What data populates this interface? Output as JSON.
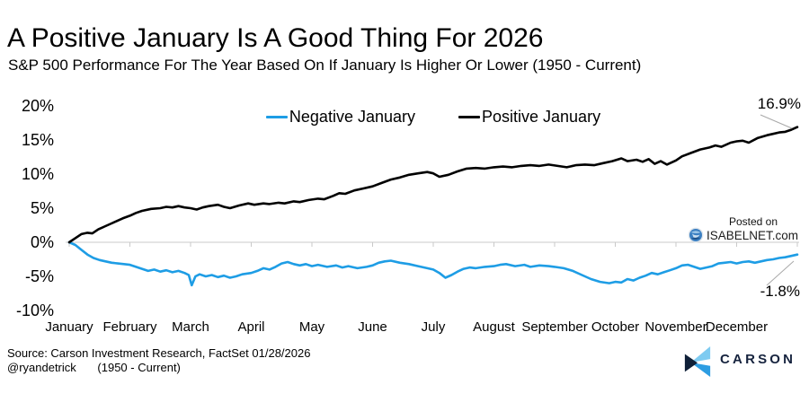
{
  "title": "A Positive January Is A Good Thing For 2026",
  "subtitle": "S&P 500 Performance For The Year Based On If January Is Higher Or Lower (1950 - Current)",
  "legend": {
    "items": [
      {
        "label": "Negative January",
        "color": "#1e9de5"
      },
      {
        "label": "Positive January",
        "color": "#000000"
      }
    ]
  },
  "chart_data": {
    "type": "line",
    "title": "A Positive January Is A Good Thing For 2026",
    "subtitle": "S&P 500 Performance For The Year Based On If January Is Higher Or Lower (1950 - Current)",
    "x_unit": "month (0 = start of January, 12 = end of December)",
    "categories": [
      "January",
      "February",
      "March",
      "April",
      "May",
      "June",
      "July",
      "August",
      "September",
      "October",
      "November",
      "December"
    ],
    "y_axis": {
      "unit": "%",
      "range": [
        -10,
        20
      ],
      "ticks": [
        {
          "label": "20%",
          "value": 20
        },
        {
          "label": "15%",
          "value": 15
        },
        {
          "label": "10%",
          "value": 10
        },
        {
          "label": "5%",
          "value": 5
        },
        {
          "label": "0%",
          "value": 0
        },
        {
          "label": "-5%",
          "value": -5
        },
        {
          "label": "-10%",
          "value": -10
        }
      ]
    },
    "grid": "zero-line-only",
    "legend_position": "top-center",
    "series": [
      {
        "name": "Negative January",
        "color": "#1e9de5",
        "end_label": "-1.8%",
        "end_value": -1.8,
        "points": [
          [
            0,
            0
          ],
          [
            0.1,
            -0.4
          ],
          [
            0.2,
            -1.1
          ],
          [
            0.3,
            -1.8
          ],
          [
            0.4,
            -2.3
          ],
          [
            0.5,
            -2.6
          ],
          [
            0.6,
            -2.8
          ],
          [
            0.7,
            -3.0
          ],
          [
            0.8,
            -3.1
          ],
          [
            0.9,
            -3.2
          ],
          [
            1.0,
            -3.3
          ],
          [
            1.1,
            -3.6
          ],
          [
            1.2,
            -3.9
          ],
          [
            1.3,
            -4.2
          ],
          [
            1.4,
            -4.0
          ],
          [
            1.5,
            -4.3
          ],
          [
            1.6,
            -4.1
          ],
          [
            1.7,
            -4.4
          ],
          [
            1.8,
            -4.2
          ],
          [
            1.9,
            -4.5
          ],
          [
            1.97,
            -4.8
          ],
          [
            2.02,
            -6.3
          ],
          [
            2.08,
            -5.0
          ],
          [
            2.15,
            -4.7
          ],
          [
            2.25,
            -5.0
          ],
          [
            2.35,
            -4.8
          ],
          [
            2.45,
            -5.1
          ],
          [
            2.55,
            -4.9
          ],
          [
            2.65,
            -5.2
          ],
          [
            2.75,
            -5.0
          ],
          [
            2.85,
            -4.7
          ],
          [
            3.0,
            -4.5
          ],
          [
            3.1,
            -4.2
          ],
          [
            3.2,
            -3.8
          ],
          [
            3.3,
            -4.0
          ],
          [
            3.4,
            -3.6
          ],
          [
            3.5,
            -3.1
          ],
          [
            3.6,
            -2.9
          ],
          [
            3.7,
            -3.2
          ],
          [
            3.8,
            -3.4
          ],
          [
            3.9,
            -3.2
          ],
          [
            4.0,
            -3.5
          ],
          [
            4.1,
            -3.3
          ],
          [
            4.25,
            -3.6
          ],
          [
            4.4,
            -3.4
          ],
          [
            4.5,
            -3.7
          ],
          [
            4.6,
            -3.5
          ],
          [
            4.75,
            -3.8
          ],
          [
            4.9,
            -3.6
          ],
          [
            5.0,
            -3.4
          ],
          [
            5.1,
            -3.0
          ],
          [
            5.2,
            -2.8
          ],
          [
            5.3,
            -2.7
          ],
          [
            5.45,
            -3.0
          ],
          [
            5.6,
            -3.2
          ],
          [
            5.75,
            -3.5
          ],
          [
            5.9,
            -3.8
          ],
          [
            6.0,
            -4.0
          ],
          [
            6.1,
            -4.5
          ],
          [
            6.2,
            -5.2
          ],
          [
            6.3,
            -4.8
          ],
          [
            6.4,
            -4.3
          ],
          [
            6.5,
            -3.9
          ],
          [
            6.6,
            -3.7
          ],
          [
            6.7,
            -3.8
          ],
          [
            6.85,
            -3.6
          ],
          [
            7.0,
            -3.5
          ],
          [
            7.1,
            -3.3
          ],
          [
            7.2,
            -3.2
          ],
          [
            7.35,
            -3.5
          ],
          [
            7.5,
            -3.3
          ],
          [
            7.6,
            -3.6
          ],
          [
            7.75,
            -3.4
          ],
          [
            7.9,
            -3.5
          ],
          [
            8.0,
            -3.6
          ],
          [
            8.15,
            -3.8
          ],
          [
            8.3,
            -4.2
          ],
          [
            8.45,
            -4.8
          ],
          [
            8.6,
            -5.4
          ],
          [
            8.75,
            -5.8
          ],
          [
            8.9,
            -6.0
          ],
          [
            9.0,
            -5.8
          ],
          [
            9.1,
            -5.9
          ],
          [
            9.2,
            -5.4
          ],
          [
            9.3,
            -5.6
          ],
          [
            9.4,
            -5.2
          ],
          [
            9.5,
            -4.9
          ],
          [
            9.6,
            -4.5
          ],
          [
            9.7,
            -4.7
          ],
          [
            9.8,
            -4.4
          ],
          [
            9.9,
            -4.1
          ],
          [
            10.0,
            -3.8
          ],
          [
            10.1,
            -3.4
          ],
          [
            10.2,
            -3.3
          ],
          [
            10.3,
            -3.6
          ],
          [
            10.4,
            -3.9
          ],
          [
            10.5,
            -3.7
          ],
          [
            10.6,
            -3.5
          ],
          [
            10.7,
            -3.1
          ],
          [
            10.8,
            -3.0
          ],
          [
            10.9,
            -2.9
          ],
          [
            11.0,
            -3.1
          ],
          [
            11.1,
            -2.9
          ],
          [
            11.2,
            -2.8
          ],
          [
            11.3,
            -3.0
          ],
          [
            11.4,
            -2.8
          ],
          [
            11.5,
            -2.6
          ],
          [
            11.6,
            -2.5
          ],
          [
            11.7,
            -2.3
          ],
          [
            11.8,
            -2.2
          ],
          [
            11.9,
            -2.0
          ],
          [
            12.0,
            -1.8
          ]
        ]
      },
      {
        "name": "Positive January",
        "color": "#000000",
        "end_label": "16.9%",
        "end_value": 16.9,
        "points": [
          [
            0,
            0
          ],
          [
            0.1,
            0.6
          ],
          [
            0.2,
            1.2
          ],
          [
            0.3,
            1.4
          ],
          [
            0.38,
            1.3
          ],
          [
            0.48,
            1.9
          ],
          [
            0.58,
            2.3
          ],
          [
            0.68,
            2.7
          ],
          [
            0.78,
            3.1
          ],
          [
            0.88,
            3.5
          ],
          [
            1.0,
            3.9
          ],
          [
            1.1,
            4.3
          ],
          [
            1.2,
            4.6
          ],
          [
            1.35,
            4.9
          ],
          [
            1.5,
            5.0
          ],
          [
            1.6,
            5.2
          ],
          [
            1.7,
            5.1
          ],
          [
            1.8,
            5.3
          ],
          [
            1.9,
            5.1
          ],
          [
            2.0,
            5.0
          ],
          [
            2.1,
            4.8
          ],
          [
            2.2,
            5.1
          ],
          [
            2.3,
            5.3
          ],
          [
            2.45,
            5.5
          ],
          [
            2.55,
            5.2
          ],
          [
            2.65,
            5.0
          ],
          [
            2.8,
            5.4
          ],
          [
            2.95,
            5.7
          ],
          [
            3.05,
            5.5
          ],
          [
            3.2,
            5.7
          ],
          [
            3.3,
            5.6
          ],
          [
            3.45,
            5.8
          ],
          [
            3.55,
            5.7
          ],
          [
            3.7,
            6.0
          ],
          [
            3.8,
            5.9
          ],
          [
            3.95,
            6.2
          ],
          [
            4.1,
            6.4
          ],
          [
            4.2,
            6.3
          ],
          [
            4.35,
            6.8
          ],
          [
            4.45,
            7.2
          ],
          [
            4.55,
            7.1
          ],
          [
            4.7,
            7.6
          ],
          [
            4.85,
            7.9
          ],
          [
            5.0,
            8.2
          ],
          [
            5.15,
            8.7
          ],
          [
            5.3,
            9.2
          ],
          [
            5.45,
            9.5
          ],
          [
            5.6,
            9.9
          ],
          [
            5.75,
            10.1
          ],
          [
            5.9,
            10.3
          ],
          [
            6.0,
            10.1
          ],
          [
            6.1,
            9.6
          ],
          [
            6.25,
            9.9
          ],
          [
            6.4,
            10.4
          ],
          [
            6.55,
            10.8
          ],
          [
            6.7,
            10.9
          ],
          [
            6.85,
            10.8
          ],
          [
            7.0,
            11.0
          ],
          [
            7.15,
            11.1
          ],
          [
            7.3,
            11.0
          ],
          [
            7.45,
            11.2
          ],
          [
            7.6,
            11.3
          ],
          [
            7.75,
            11.2
          ],
          [
            7.9,
            11.4
          ],
          [
            8.05,
            11.2
          ],
          [
            8.2,
            11.0
          ],
          [
            8.35,
            11.3
          ],
          [
            8.5,
            11.4
          ],
          [
            8.65,
            11.3
          ],
          [
            8.8,
            11.6
          ],
          [
            8.95,
            11.9
          ],
          [
            9.1,
            12.3
          ],
          [
            9.2,
            11.9
          ],
          [
            9.35,
            12.1
          ],
          [
            9.45,
            11.8
          ],
          [
            9.55,
            12.2
          ],
          [
            9.65,
            11.5
          ],
          [
            9.75,
            11.9
          ],
          [
            9.85,
            11.4
          ],
          [
            10.0,
            12.0
          ],
          [
            10.1,
            12.6
          ],
          [
            10.25,
            13.1
          ],
          [
            10.4,
            13.6
          ],
          [
            10.55,
            13.9
          ],
          [
            10.65,
            14.2
          ],
          [
            10.75,
            14.0
          ],
          [
            10.9,
            14.6
          ],
          [
            11.0,
            14.8
          ],
          [
            11.1,
            14.9
          ],
          [
            11.2,
            14.6
          ],
          [
            11.35,
            15.3
          ],
          [
            11.5,
            15.7
          ],
          [
            11.6,
            15.9
          ],
          [
            11.7,
            16.1
          ],
          [
            11.8,
            16.2
          ],
          [
            11.9,
            16.5
          ],
          [
            12.0,
            16.9
          ]
        ]
      }
    ]
  },
  "watermark": {
    "line1": "Posted on",
    "line2": "ISABELNET.com"
  },
  "footer": {
    "source": "Source: Carson Investment Research, FactSet 01/28/2026",
    "handle": "@ryandetrick",
    "range": "(1950 - Current)"
  },
  "brand": {
    "name": "CARSON",
    "mark_colors": {
      "light": "#7ecbf1",
      "navy": "#0f2038",
      "blue": "#2d9de2"
    },
    "text_color": "#16233e"
  }
}
